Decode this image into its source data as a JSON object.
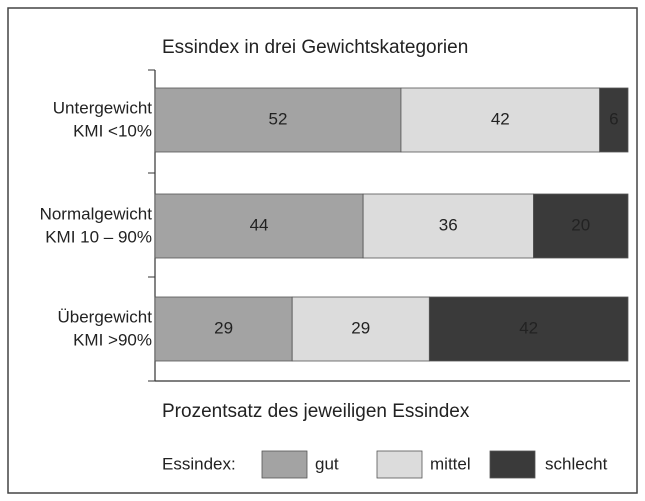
{
  "chart_data": {
    "type": "stacked-barh",
    "title": "Essindex in drei Gewichtskategorien",
    "categories": [
      "Untergewicht",
      "Normalgewicht",
      "Übergewicht"
    ],
    "category_notes": [
      "KMI <10%",
      "KMI 10 – 90%",
      "KMI >90%"
    ],
    "series": [
      {
        "name": "gut",
        "color": "#a3a3a3",
        "label_color": "#ffffff",
        "values": [
          52,
          44,
          29
        ]
      },
      {
        "name": "mittel",
        "color": "#dcdcdc",
        "label_color": "#111111",
        "values": [
          42,
          36,
          29
        ]
      },
      {
        "name": "schlecht",
        "color": "#3a3a3a",
        "label_color": "#ffffff",
        "values": [
          6,
          20,
          42
        ]
      }
    ],
    "xlim": [
      0,
      100
    ],
    "xlabel": "Prozentsatz des jeweiligen Essindex",
    "legend_title": "Essindex:"
  }
}
